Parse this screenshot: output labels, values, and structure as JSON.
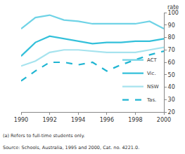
{
  "chart_data": {
    "type": "line",
    "ylabel": "rate",
    "x": [
      1990,
      1991,
      1992,
      1993,
      1994,
      1995,
      1996,
      1997,
      1998,
      1999,
      2000
    ],
    "series": [
      {
        "name": "ACT",
        "color": "#6fd3e6",
        "line_style": "solid",
        "values": [
          87,
          96,
          98,
          94,
          93,
          91,
          91,
          91,
          91,
          93,
          87
        ]
      },
      {
        "name": "Vic.",
        "color": "#33c0da",
        "line_style": "solid",
        "values": [
          65,
          76,
          81,
          79,
          77,
          75,
          76,
          76,
          77,
          77,
          79
        ]
      },
      {
        "name": "NSW",
        "color": "#a6e3ee",
        "line_style": "solid",
        "values": [
          57,
          61,
          68,
          70,
          70,
          69,
          68,
          68,
          68,
          70,
          72
        ]
      },
      {
        "name": "Tas.",
        "color": "#1fb5d2",
        "line_style": "dashed",
        "values": [
          45,
          53,
          60,
          60,
          58,
          60,
          53,
          58,
          62,
          66,
          69
        ]
      }
    ],
    "xlim": [
      1990,
      2000
    ],
    "xticks": [
      1990,
      1992,
      1994,
      1996,
      1998,
      2000
    ],
    "ylim": [
      20,
      100
    ],
    "yticks": [
      20,
      30,
      40,
      50,
      60,
      70,
      80,
      90,
      100
    ],
    "grid": false,
    "legend": "lower right",
    "annotations": [
      "(a) Refers to full-time students only.",
      "Source: Schools, Australia, 1995 and 2000, Cat. no. 4221.0."
    ]
  }
}
